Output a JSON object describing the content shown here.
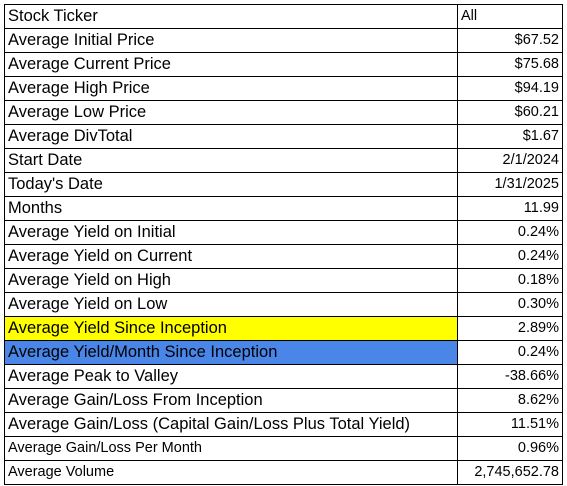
{
  "colors": {
    "highlight_yellow": "#ffff00",
    "highlight_blue": "#4a86e8",
    "grid_border": "#000000"
  },
  "rows": [
    {
      "label": "Stock Ticker",
      "value": "All"
    },
    {
      "label": "Average Initial Price",
      "value": "$67.52"
    },
    {
      "label": "Average Current Price",
      "value": "$75.68"
    },
    {
      "label": "Average High Price",
      "value": "$94.19"
    },
    {
      "label": "Average Low Price",
      "value": "$60.21"
    },
    {
      "label": "Average DivTotal",
      "value": "$1.67"
    },
    {
      "label": "Start Date",
      "value": "2/1/2024"
    },
    {
      "label": "Today's Date",
      "value": "1/31/2025"
    },
    {
      "label": "Months",
      "value": "11.99"
    },
    {
      "label": "Average Yield on Initial",
      "value": "0.24%"
    },
    {
      "label": "Average Yield on Current",
      "value": "0.24%"
    },
    {
      "label": "Average Yield on High",
      "value": "0.18%"
    },
    {
      "label": "Average Yield on Low",
      "value": "0.30%"
    },
    {
      "label": "Average Yield Since Inception",
      "value": "2.89%"
    },
    {
      "label": "Average Yield/Month Since Inception",
      "value": "0.24%"
    },
    {
      "label": "Average Peak to Valley",
      "value": "-38.66%"
    },
    {
      "label": "Average Gain/Loss From Inception",
      "value": "8.62%"
    },
    {
      "label": "Average Gain/Loss (Capital Gain/Loss Plus Total Yield)",
      "value": "11.51%"
    },
    {
      "label": "Average Gain/Loss Per Month",
      "value": "0.96%"
    },
    {
      "label": "Average Volume",
      "value": "2,745,652.78"
    }
  ]
}
